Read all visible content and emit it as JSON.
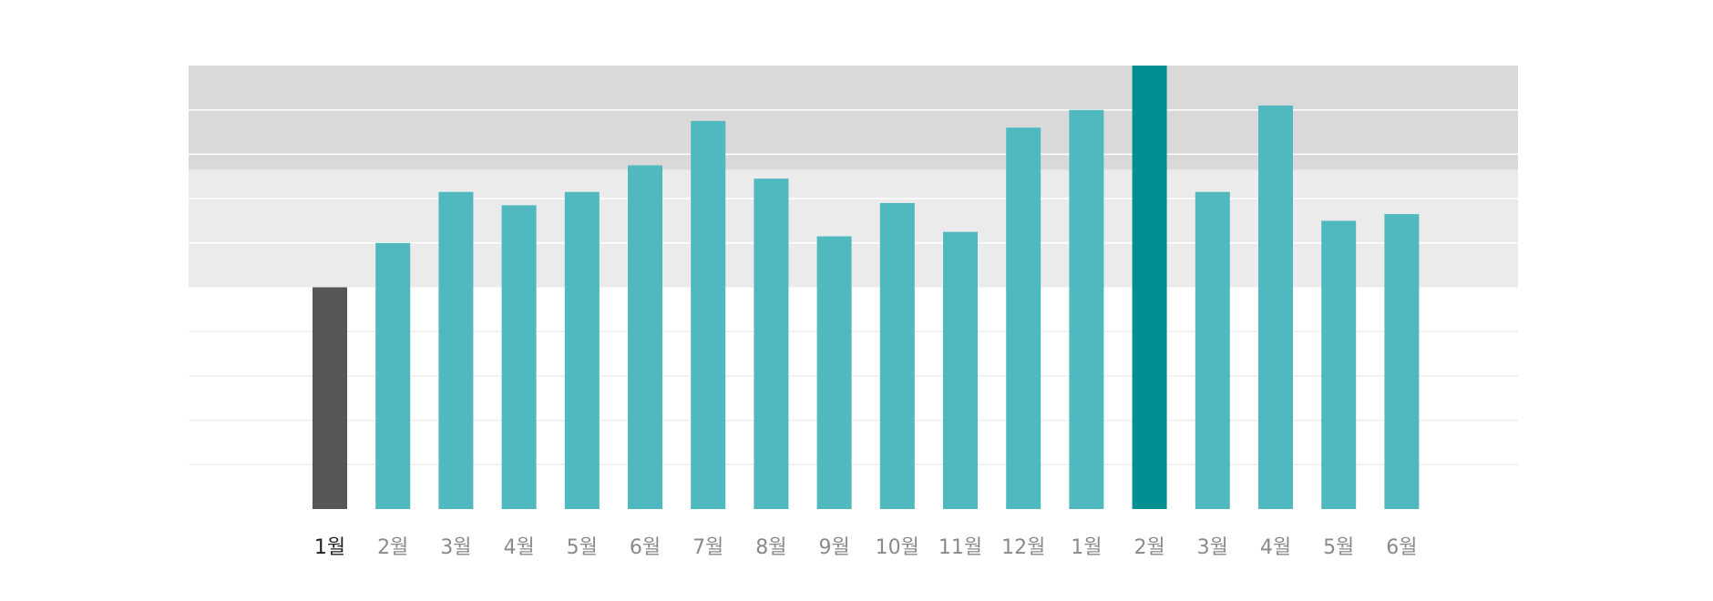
{
  "chart_data": {
    "type": "bar",
    "title": "",
    "xlabel": "",
    "ylabel": "",
    "categories": [
      "1월",
      "2월",
      "3월",
      "4월",
      "5월",
      "6월",
      "7월",
      "8월",
      "9월",
      "10월",
      "11월",
      "12월",
      "1월",
      "2월",
      "3월",
      "4월",
      "5월",
      "6월"
    ],
    "values": [
      50,
      60,
      71.5,
      68.5,
      71.5,
      77.5,
      87.5,
      74.5,
      61.5,
      69,
      62.5,
      86,
      90,
      100,
      71.5,
      91,
      65,
      66.5
    ],
    "ylim": [
      0,
      100
    ],
    "highlight_bands": [
      {
        "from": 50,
        "to": 76.5,
        "color": "#ebebeb"
      },
      {
        "from": 76.5,
        "to": 100,
        "color": "#d9d9d9"
      }
    ],
    "gridlines": [
      10,
      20,
      30,
      40,
      60,
      70,
      80,
      90
    ],
    "grid": true,
    "legend": "none",
    "colors": {
      "first_bar": "#575654",
      "default_bar": "#4fb9bf",
      "highlight_bar": "#009093",
      "first_label": "#222222",
      "default_label": "#8a8a8a",
      "grid_light": "#eeeeee",
      "grid_band": "#ffffff"
    },
    "emphasis": {
      "first_index": 0,
      "highlight_index": 13
    }
  }
}
